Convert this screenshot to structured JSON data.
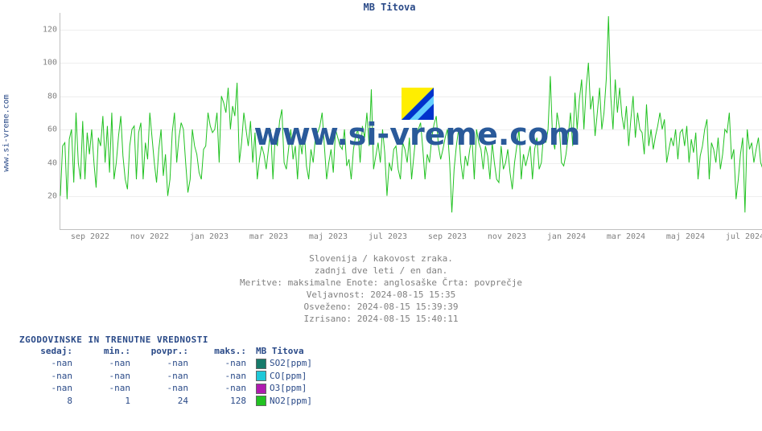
{
  "title": "MB Titova",
  "y_axis_outer_label": "www.si-vreme.com",
  "watermark_text": "www.si-vreme.com",
  "chart": {
    "type": "line",
    "background_color": "#ffffff",
    "grid_color": "#eeeeee",
    "axis_color": "#c0c0c0",
    "tick_font_size": 10,
    "ylim": [
      0,
      130
    ],
    "y_ticks": [
      20,
      40,
      60,
      80,
      100,
      120
    ],
    "x_labels": [
      "sep 2022",
      "nov 2022",
      "jan 2023",
      "mar 2023",
      "maj 2023",
      "jul 2023",
      "sep 2023",
      "nov 2023",
      "jan 2024",
      "mar 2024",
      "maj 2024",
      "jul 2024"
    ],
    "line_color": "#22c222",
    "line_width": 1,
    "series": [
      20,
      50,
      52,
      18,
      54,
      60,
      28,
      70,
      40,
      30,
      65,
      30,
      58,
      45,
      60,
      40,
      25,
      55,
      50,
      68,
      40,
      62,
      34,
      70,
      30,
      40,
      56,
      68,
      44,
      30,
      24,
      50,
      60,
      62,
      30,
      58,
      64,
      30,
      52,
      42,
      70,
      55,
      40,
      28,
      48,
      60,
      32,
      45,
      20,
      30,
      58,
      70,
      40,
      55,
      64,
      60,
      40,
      22,
      30,
      60,
      50,
      45,
      34,
      30,
      48,
      50,
      70,
      62,
      58,
      60,
      70,
      40,
      80,
      76,
      70,
      85,
      60,
      74,
      68,
      88,
      40,
      52,
      70,
      60,
      50,
      65,
      40,
      58,
      30,
      42,
      50,
      45,
      36,
      48,
      60,
      30,
      55,
      50,
      65,
      72,
      40,
      36,
      48,
      60,
      42,
      50,
      30,
      55,
      45,
      60,
      38,
      30,
      48,
      40,
      55,
      58,
      62,
      70,
      50,
      30,
      40,
      48,
      34,
      60,
      55,
      50,
      48,
      60,
      38,
      42,
      30,
      48,
      56,
      60,
      40,
      62,
      55,
      70,
      50,
      84,
      36,
      44,
      52,
      40,
      60,
      46,
      20,
      40,
      35,
      48,
      50,
      36,
      30,
      52,
      48,
      40,
      55,
      30,
      44,
      58,
      60,
      64,
      48,
      30,
      45,
      40,
      55,
      63,
      68,
      50,
      42,
      48,
      55,
      60,
      40,
      10,
      36,
      50,
      60,
      40,
      30,
      44,
      38,
      48,
      55,
      30,
      60,
      52,
      48,
      36,
      50,
      44,
      30,
      52,
      40,
      30,
      28,
      50,
      36,
      40,
      48,
      34,
      24,
      40,
      50,
      60,
      30,
      45,
      38,
      44,
      50,
      30,
      48,
      55,
      36,
      40,
      58,
      52,
      60,
      92,
      55,
      48,
      70,
      62,
      40,
      38,
      45,
      56,
      70,
      50,
      82,
      60,
      78,
      90,
      60,
      85,
      100,
      72,
      80,
      56,
      70,
      85,
      60,
      70,
      90,
      128,
      80,
      60,
      90,
      70,
      85,
      68,
      60,
      74,
      50,
      66,
      80,
      55,
      70,
      60,
      58,
      45,
      75,
      50,
      60,
      48,
      56,
      62,
      70,
      60,
      66,
      40,
      48,
      55,
      50,
      60,
      42,
      58,
      60,
      50,
      62,
      40,
      54,
      46,
      58,
      30,
      44,
      50,
      60,
      66,
      30,
      52,
      48,
      40,
      55,
      36,
      45,
      60,
      58,
      70,
      42,
      48,
      18,
      30,
      45,
      55,
      10,
      60,
      48,
      52,
      40,
      48,
      55,
      40,
      36,
      48,
      50,
      60,
      54,
      44
    ]
  },
  "meta": {
    "line1": "Slovenija / kakovost zraka.",
    "line2": "zadnji dve leti / en dan.",
    "line3": "Meritve: maksimalne  Enote: anglosaške  Črta: povprečje",
    "validity_label": "Veljavnost:",
    "validity_value": "2024-08-15 15:35",
    "refreshed_label": "Osveženo:",
    "refreshed_value": "2024-08-15 15:39:39",
    "drawn_label": "Izrisano:",
    "drawn_value": "2024-08-15 15:40:11"
  },
  "legend": {
    "title": "ZGODOVINSKE IN TRENUTNE VREDNOSTI",
    "columns": [
      "sedaj:",
      "min.:",
      "povpr.:",
      "maks.:"
    ],
    "series_header": "MB Titova",
    "rows": [
      {
        "name": "SO2[ppm]",
        "swatch": "#167a6a",
        "now": "-nan",
        "min": "-nan",
        "avg": "-nan",
        "max": "-nan"
      },
      {
        "name": "CO[ppm]",
        "swatch": "#1fc8d8",
        "now": "-nan",
        "min": "-nan",
        "avg": "-nan",
        "max": "-nan"
      },
      {
        "name": "O3[ppm]",
        "swatch": "#b01ab0",
        "now": "-nan",
        "min": "-nan",
        "avg": "-nan",
        "max": "-nan"
      },
      {
        "name": "NO2[ppm]",
        "swatch": "#22c222",
        "now": "8",
        "min": "1",
        "avg": "24",
        "max": "128"
      }
    ]
  }
}
